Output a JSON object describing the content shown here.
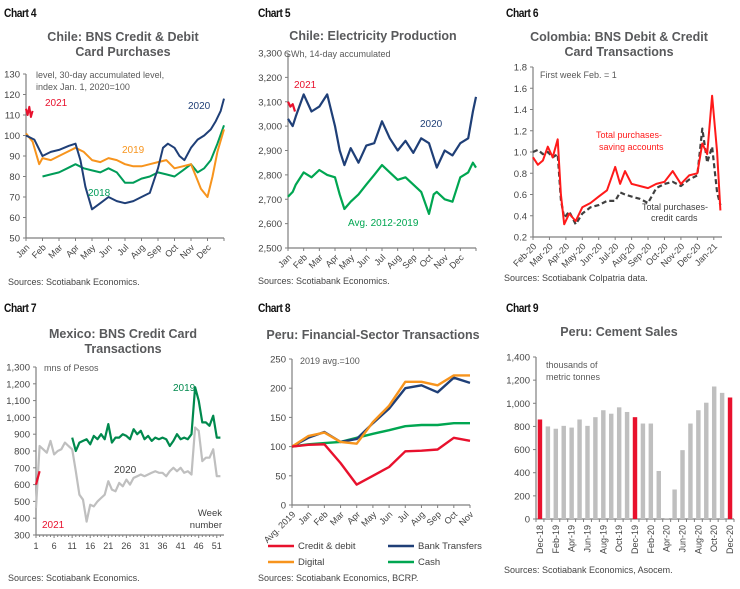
{
  "panels": [
    {
      "id": "chart4",
      "label": "Chart 4",
      "title_lines": [
        "Chile: BNS Credit & Debit",
        "Card Purchases"
      ],
      "source": "Sources: Scotiabank Economics."
    },
    {
      "id": "chart5",
      "label": "Chart 5",
      "title_lines": [
        "Chile: Electricity Production"
      ],
      "source": "Sources: Scotiabank Economics."
    },
    {
      "id": "chart6",
      "label": "Chart 6",
      "title_lines": [
        "Colombia: BNS Debit & Credit",
        "Card Transactions"
      ],
      "source": "Sources: Scotiabank Colpatria data."
    },
    {
      "id": "chart7",
      "label": "Chart 7",
      "title_lines": [
        "Mexico: BNS Credit Card",
        "Transactions"
      ],
      "source": "Sources: Scotiabank Economics."
    },
    {
      "id": "chart8",
      "label": "Chart 8",
      "title_lines": [
        "Peru: Financial-Sector Transactions"
      ],
      "source": "Sources: Scotiabank Economics, BCRP."
    },
    {
      "id": "chart9",
      "label": "Chart 9",
      "title_lines": [
        "Peru: Cement Sales"
      ],
      "source": "Sources: Scotiabank Economics, Asocem."
    }
  ],
  "chart_data": [
    {
      "id": "chart4",
      "type": "line",
      "title": "Chile: BNS Credit & Debit Card Purchases",
      "annotation": [
        "level, 30-day accumulated level,",
        "index Jan. 1, 2020=100"
      ],
      "xlabel": "",
      "ylabel": "",
      "ylim": [
        50,
        130
      ],
      "yticks": [
        50,
        60,
        70,
        80,
        90,
        100,
        110,
        120,
        130
      ],
      "x_ticks": [
        "Jan",
        "Feb",
        "Mar",
        "Apr",
        "May",
        "Jun",
        "Jul",
        "Aug",
        "Sep",
        "Oct",
        "Nov",
        "Dec"
      ],
      "xlim": [
        0,
        12
      ],
      "series": [
        {
          "name": "2021",
          "color": "#e8112d",
          "x": [
            0,
            0.1,
            0.2,
            0.3,
            0.4
          ],
          "y": [
            113,
            110,
            114,
            109,
            112
          ]
        },
        {
          "name": "2020",
          "color": "#1f3f77",
          "x": [
            0,
            0.5,
            1,
            1.5,
            2,
            2.6,
            3,
            3.3,
            3.6,
            4,
            4.5,
            5,
            5.5,
            6,
            6.5,
            7,
            7.5,
            8,
            8.3,
            8.6,
            9,
            9.3,
            9.6,
            10,
            10.4,
            10.8,
            11.2,
            11.5,
            11.8,
            12
          ],
          "y": [
            100,
            98,
            90,
            92,
            93,
            95,
            96,
            88,
            75,
            64,
            67,
            70,
            68,
            67,
            68,
            70,
            72,
            84,
            94,
            96,
            94,
            90,
            88,
            94,
            98,
            100,
            103,
            107,
            112,
            118
          ]
        },
        {
          "name": "2019",
          "color": "#f7941d",
          "x": [
            0,
            0.4,
            0.8,
            1,
            1.5,
            2,
            2.5,
            3,
            3.5,
            4,
            4.5,
            5,
            5.5,
            6,
            6.5,
            7,
            7.5,
            8,
            8.5,
            9,
            9.5,
            10,
            10.3,
            10.6,
            11,
            11.3,
            11.6,
            12
          ],
          "y": [
            101,
            97,
            86,
            89,
            88,
            90,
            92,
            94,
            92,
            88,
            87,
            89,
            88,
            86,
            85,
            85,
            86,
            87,
            88,
            84,
            85,
            86,
            80,
            74,
            70,
            80,
            92,
            103
          ]
        },
        {
          "name": "2018",
          "color": "#009c58",
          "x": [
            1,
            1.5,
            2,
            2.5,
            3,
            3.5,
            4,
            4.5,
            5,
            5.5,
            6,
            6.5,
            7,
            7.5,
            8,
            8.5,
            9,
            9.5,
            10,
            10.4,
            10.8,
            11.2,
            11.6,
            12
          ],
          "y": [
            80,
            81,
            82,
            84,
            86,
            84,
            83,
            82,
            84,
            82,
            77,
            77,
            79,
            80,
            82,
            81,
            80,
            83,
            86,
            82,
            84,
            88,
            96,
            105
          ]
        }
      ]
    },
    {
      "id": "chart5",
      "type": "line",
      "title": "Chile: Electricity Production",
      "annotation": [
        "GWh, 14-day accumulated"
      ],
      "ylim": [
        2500,
        3300
      ],
      "yticks": [
        2500,
        2600,
        2700,
        2800,
        2900,
        3000,
        3100,
        3200,
        3300
      ],
      "x_ticks": [
        "Jan",
        "Feb",
        "Mar",
        "Apr",
        "May",
        "Jun",
        "Jul",
        "Aug",
        "Sep",
        "Oct",
        "Nov",
        "Dec"
      ],
      "xlim": [
        0,
        12
      ],
      "series": [
        {
          "name": "2021",
          "color": "#e8112d",
          "x": [
            0,
            0.15,
            0.3,
            0.45
          ],
          "y": [
            3100,
            3080,
            3090,
            3060
          ]
        },
        {
          "name": "2020",
          "color": "#1f3f77",
          "x": [
            0,
            0.3,
            0.5,
            1,
            1.5,
            2,
            2.5,
            3,
            3.3,
            3.6,
            4,
            4.5,
            5,
            5.5,
            6,
            6.5,
            7,
            7.5,
            8,
            8.5,
            9,
            9.5,
            10,
            10.5,
            11,
            11.5,
            11.8,
            12
          ],
          "y": [
            3030,
            3000,
            3040,
            3130,
            3060,
            3080,
            3130,
            3000,
            2900,
            2840,
            2910,
            2850,
            2920,
            2930,
            3020,
            2950,
            2900,
            2940,
            2890,
            2950,
            2930,
            2830,
            2900,
            2880,
            2930,
            2950,
            3060,
            3120
          ]
        },
        {
          "name": "Avg. 2012-2019",
          "color": "#00a651",
          "x": [
            0,
            0.3,
            0.5,
            1,
            1.5,
            2,
            2.5,
            3,
            3.3,
            3.6,
            4,
            4.5,
            5,
            5.5,
            6,
            6.5,
            7,
            7.5,
            8,
            8.5,
            9,
            9.3,
            9.5,
            10,
            10.5,
            11,
            11.5,
            11.8,
            12
          ],
          "y": [
            2710,
            2730,
            2760,
            2810,
            2790,
            2820,
            2800,
            2790,
            2720,
            2660,
            2690,
            2720,
            2760,
            2800,
            2840,
            2810,
            2780,
            2790,
            2760,
            2730,
            2640,
            2720,
            2730,
            2700,
            2690,
            2790,
            2810,
            2850,
            2830
          ]
        }
      ]
    },
    {
      "id": "chart6",
      "type": "line",
      "title": "Colombia: BNS Debit & Credit Card Transactions",
      "annotation": [
        "First week Feb. = 1"
      ],
      "ylim": [
        0.2,
        1.8
      ],
      "yticks": [
        0.2,
        0.4,
        0.6,
        0.8,
        1.0,
        1.2,
        1.4,
        1.6,
        1.8
      ],
      "x_ticks": [
        "Feb-20",
        "Mar-20",
        "Apr-20",
        "May-20",
        "Jun-20",
        "Jul-20",
        "Aug-20",
        "Sep-20",
        "Oct-20",
        "Nov-20",
        "Dec-20",
        "Jan-21"
      ],
      "xlim": [
        0,
        11.5
      ],
      "series": [
        {
          "name": "Total purchases - saving accounts",
          "color": "#ff1a1a",
          "dash": false,
          "x": [
            0,
            0.3,
            0.6,
            0.9,
            1.2,
            1.5,
            1.7,
            1.9,
            2.2,
            2.6,
            3,
            3.5,
            4,
            4.5,
            5,
            5.3,
            5.6,
            6,
            6.5,
            7,
            7.5,
            8,
            8.5,
            9,
            9.5,
            10,
            10.3,
            10.6,
            10.9,
            11.2,
            11.4
          ],
          "y": [
            0.95,
            0.88,
            0.92,
            1.05,
            0.95,
            1.12,
            0.6,
            0.32,
            0.42,
            0.35,
            0.48,
            0.52,
            0.58,
            0.64,
            0.86,
            0.7,
            0.82,
            0.7,
            0.68,
            0.66,
            0.7,
            0.72,
            0.82,
            0.7,
            0.78,
            0.8,
            1.08,
            0.98,
            1.53,
            1.0,
            0.45
          ]
        },
        {
          "name": "Total purchases - credit cards",
          "color": "#404040",
          "dash": true,
          "x": [
            0,
            0.3,
            0.6,
            0.9,
            1.2,
            1.5,
            1.7,
            1.9,
            2.2,
            2.6,
            3,
            3.5,
            4,
            4.5,
            5,
            5.3,
            5.6,
            6,
            6.5,
            7,
            7.5,
            8,
            8.5,
            9,
            9.5,
            10,
            10.3,
            10.6,
            10.9,
            11.2,
            11.4
          ],
          "y": [
            1.0,
            1.02,
            0.98,
            1.0,
            0.95,
            0.98,
            0.55,
            0.38,
            0.44,
            0.32,
            0.42,
            0.48,
            0.5,
            0.54,
            0.54,
            0.62,
            0.6,
            0.58,
            0.56,
            0.52,
            0.66,
            0.7,
            0.72,
            0.68,
            0.74,
            0.78,
            1.22,
            0.9,
            1.05,
            0.62,
            0.5
          ]
        }
      ]
    },
    {
      "id": "chart7",
      "type": "line",
      "title": "Mexico: BNS Credit Card Transactions",
      "annotation": [
        "mns of Pesos"
      ],
      "xlabel": "Week number",
      "ylim": [
        300,
        1300
      ],
      "yticks": [
        300,
        400,
        500,
        600,
        700,
        800,
        900,
        1000,
        1100,
        1200,
        1300
      ],
      "x_ticks": [
        "1",
        "6",
        "11",
        "16",
        "21",
        "26",
        "31",
        "36",
        "41",
        "46",
        "51"
      ],
      "xlim": [
        1,
        53
      ],
      "series": [
        {
          "name": "2021",
          "color": "#e8112d",
          "x": [
            1,
            2
          ],
          "y": [
            600,
            680
          ]
        },
        {
          "name": "2020",
          "color": "#bfbfbf",
          "x": [
            1,
            2,
            3,
            4,
            5,
            6,
            7,
            8,
            9,
            10,
            11,
            12,
            13,
            14,
            15,
            16,
            17,
            18,
            19,
            20,
            21,
            22,
            23,
            24,
            25,
            26,
            27,
            28,
            29,
            30,
            31,
            32,
            33,
            34,
            35,
            36,
            37,
            38,
            39,
            40,
            41,
            42,
            43,
            44,
            45,
            46,
            47,
            48,
            49,
            50,
            51,
            52
          ],
          "y": [
            460,
            830,
            810,
            790,
            860,
            780,
            800,
            810,
            850,
            830,
            810,
            680,
            540,
            510,
            380,
            480,
            470,
            500,
            520,
            540,
            620,
            570,
            560,
            610,
            590,
            630,
            600,
            640,
            650,
            660,
            650,
            660,
            670,
            680,
            670,
            670,
            650,
            680,
            700,
            680,
            700,
            670,
            680,
            660,
            940,
            920,
            740,
            760,
            760,
            810,
            650,
            650
          ]
        },
        {
          "name": "2019",
          "color": "#00894d",
          "x": [
            11,
            12,
            13,
            14,
            15,
            16,
            17,
            18,
            19,
            20,
            21,
            22,
            23,
            24,
            25,
            26,
            27,
            28,
            29,
            30,
            31,
            32,
            33,
            34,
            35,
            36,
            37,
            38,
            39,
            40,
            41,
            42,
            43,
            44,
            45,
            46,
            47,
            48,
            49,
            50,
            51,
            52
          ],
          "y": [
            880,
            800,
            850,
            860,
            870,
            840,
            890,
            870,
            900,
            870,
            960,
            850,
            880,
            880,
            900,
            890,
            870,
            930,
            900,
            920,
            870,
            890,
            860,
            880,
            870,
            880,
            870,
            830,
            860,
            900,
            870,
            880,
            870,
            900,
            1180,
            1100,
            970,
            970,
            950,
            1010,
            880,
            880
          ]
        }
      ]
    },
    {
      "id": "chart8",
      "type": "line",
      "title": "Peru: Financial-Sector Transactions",
      "annotation": [
        "2019 avg.=100"
      ],
      "ylim": [
        0,
        250
      ],
      "yticks": [
        0,
        50,
        100,
        150,
        200,
        250
      ],
      "categories": [
        "Avg. 2019",
        "Jan",
        "Feb",
        "Mar",
        "Apr",
        "May",
        "Jun",
        "Jul",
        "Aug",
        "Sep",
        "Oct",
        "Nov"
      ],
      "legend_position": "bottom",
      "series": [
        {
          "name": "Credit & debit",
          "color": "#e8112d",
          "values": [
            100,
            103,
            104,
            72,
            35,
            50,
            65,
            92,
            93,
            95,
            115,
            110
          ]
        },
        {
          "name": "Bank Transfers",
          "color": "#1f3f77",
          "values": [
            100,
            115,
            125,
            108,
            113,
            140,
            165,
            200,
            205,
            193,
            218,
            209
          ]
        },
        {
          "name": "Digital",
          "color": "#f7941d",
          "values": [
            100,
            118,
            124,
            108,
            105,
            142,
            170,
            211,
            211,
            205,
            222,
            222
          ]
        },
        {
          "name": "Cash",
          "color": "#00a651",
          "values": [
            100,
            104,
            106,
            108,
            115,
            122,
            128,
            135,
            137,
            137,
            140,
            140
          ]
        }
      ]
    },
    {
      "id": "chart9",
      "type": "bar",
      "title": "Peru: Cement Sales",
      "annotation": [
        "thousands of",
        "metric tonnes"
      ],
      "ylim": [
        0,
        1400
      ],
      "yticks": [
        0,
        200,
        400,
        600,
        800,
        1000,
        1200,
        1400
      ],
      "categories": [
        "Dec-18",
        "Jan-19",
        "Feb-19",
        "Mar-19",
        "Apr-19",
        "May-19",
        "Jun-19",
        "Jul-19",
        "Aug-19",
        "Sep-19",
        "Oct-19",
        "Nov-19",
        "Dec-19",
        "Jan-20",
        "Feb-20",
        "Mar-20",
        "Apr-20",
        "May-20",
        "Jun-20",
        "Jul-20",
        "Aug-20",
        "Sep-20",
        "Oct-20",
        "Nov-20",
        "Dec-20"
      ],
      "tick_labels": [
        "Dec-18",
        "Feb-19",
        "Apr-19",
        "Jun-19",
        "Aug-19",
        "Oct-19",
        "Dec-19",
        "Feb-20",
        "Apr-20",
        "Jun-20",
        "Aug-20",
        "Oct-20",
        "Dec-20"
      ],
      "values": [
        860,
        800,
        780,
        805,
        790,
        860,
        805,
        880,
        940,
        910,
        965,
        925,
        880,
        825,
        825,
        415,
        5,
        255,
        595,
        825,
        940,
        1005,
        1145,
        1090,
        1050
      ],
      "highlight": [
        "Dec-18",
        "Dec-19",
        "Dec-20"
      ],
      "colors": {
        "bar": "#bfbfbf",
        "highlight": "#e8112d"
      }
    }
  ]
}
